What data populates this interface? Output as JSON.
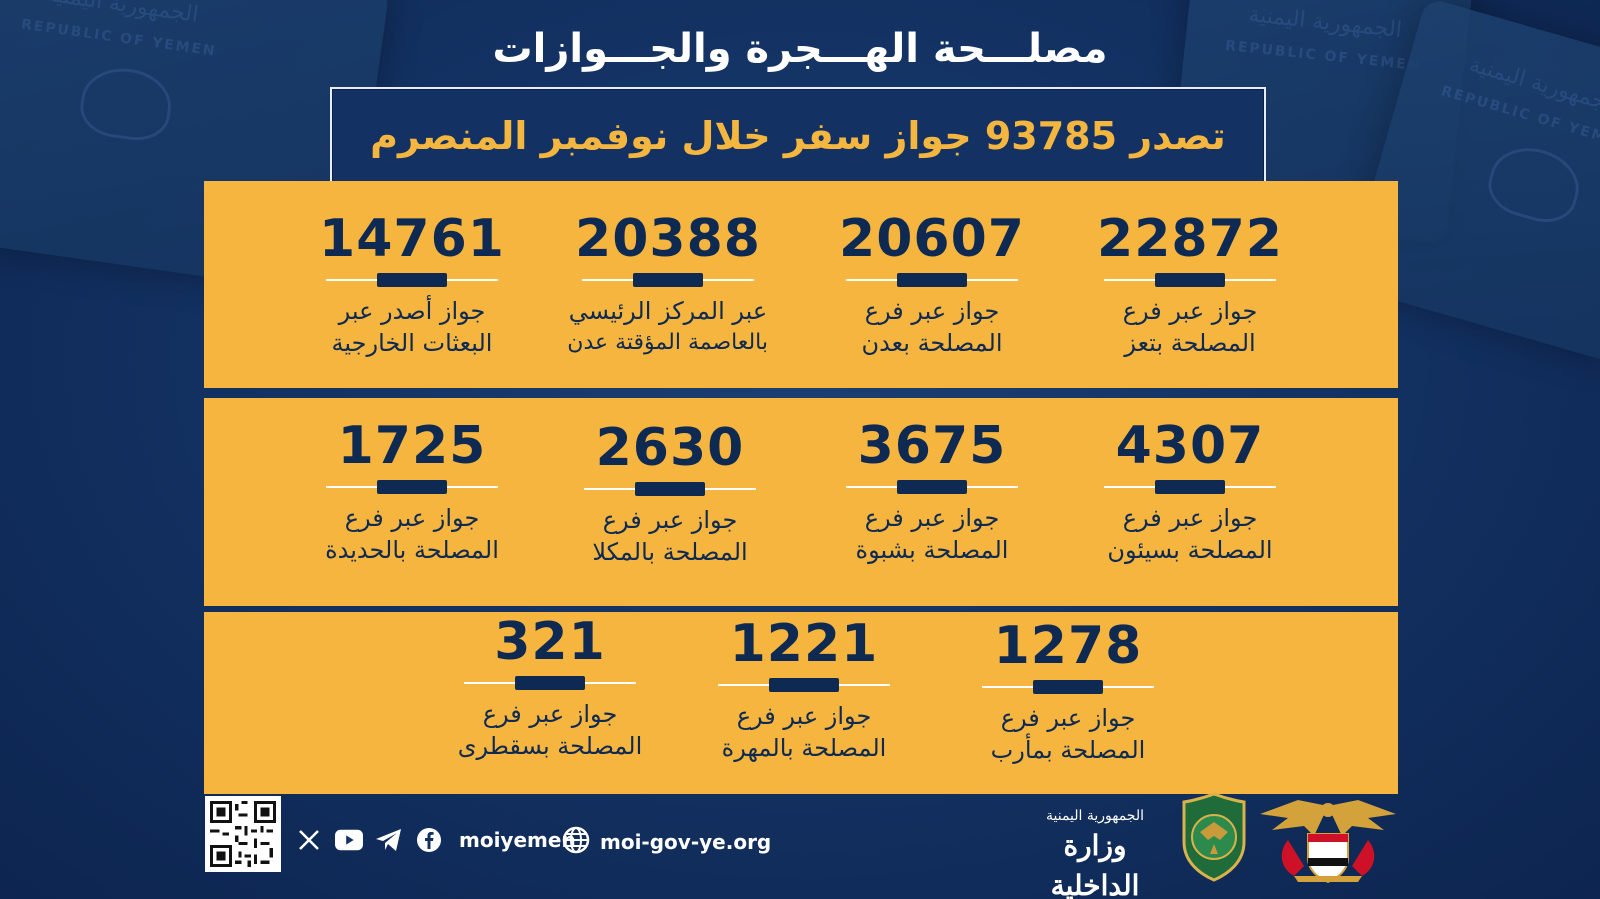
{
  "header": {
    "title": "مصلـــحة الهـــجرة والجـــوازات",
    "subtitle": "تصدر 93785 جواز سفر خلال نوفمبر المنصرم"
  },
  "background": {
    "passport_text_ar": "الجمهورية اليمنية",
    "passport_text_en": "REPUBLIC OF YEMEN"
  },
  "stats": {
    "row1": [
      {
        "value": "22872",
        "line1": "جواز عبر فرع",
        "line2": "المصلحة بتعز"
      },
      {
        "value": "20607",
        "line1": "جواز عبر فرع",
        "line2": "المصلحة بعدن"
      },
      {
        "value": "20388",
        "line1": "عبر المركز الرئيسي",
        "line2": "بالعاصمة المؤقتة عدن"
      },
      {
        "value": "14761",
        "line1": "جواز أصدر عبر",
        "line2": "البعثات الخارجية"
      }
    ],
    "row2": [
      {
        "value": "4307",
        "line1": "جواز عبر فرع",
        "line2": "المصلحة بسيئون"
      },
      {
        "value": "3675",
        "line1": "جواز عبر فرع",
        "line2": "المصلحة بشبوة"
      },
      {
        "value": "2630",
        "line1": "جواز عبر فرع",
        "line2": "المصلحة بالمكلا"
      },
      {
        "value": "1725",
        "line1": "جواز عبر فرع",
        "line2": "المصلحة بالحديدة"
      }
    ],
    "row3": [
      {
        "value": "1278",
        "line1": "جواز عبر فرع",
        "line2": "المصلحة بمأرب"
      },
      {
        "value": "1221",
        "line1": "جواز عبر فرع",
        "line2": "المصلحة بالمهرة"
      },
      {
        "value": "321",
        "line1": "جواز عبر فرع",
        "line2": "المصلحة بسقطرى"
      }
    ]
  },
  "footer": {
    "social_handle": "moiyemen",
    "website": "moi-gov-ye.org",
    "ministry_line1": "الجمهورية اليمنية",
    "ministry_line2": "وزارة الداخلية",
    "icons": [
      "qr-code-icon",
      "x-icon",
      "youtube-icon",
      "telegram-icon",
      "facebook-icon",
      "globe-icon",
      "police-emblem-icon",
      "state-emblem-icon"
    ]
  },
  "colors": {
    "navy": "#133263",
    "gold": "#f5b53f",
    "text_dark": "#0f2a52",
    "white": "#ffffff"
  }
}
